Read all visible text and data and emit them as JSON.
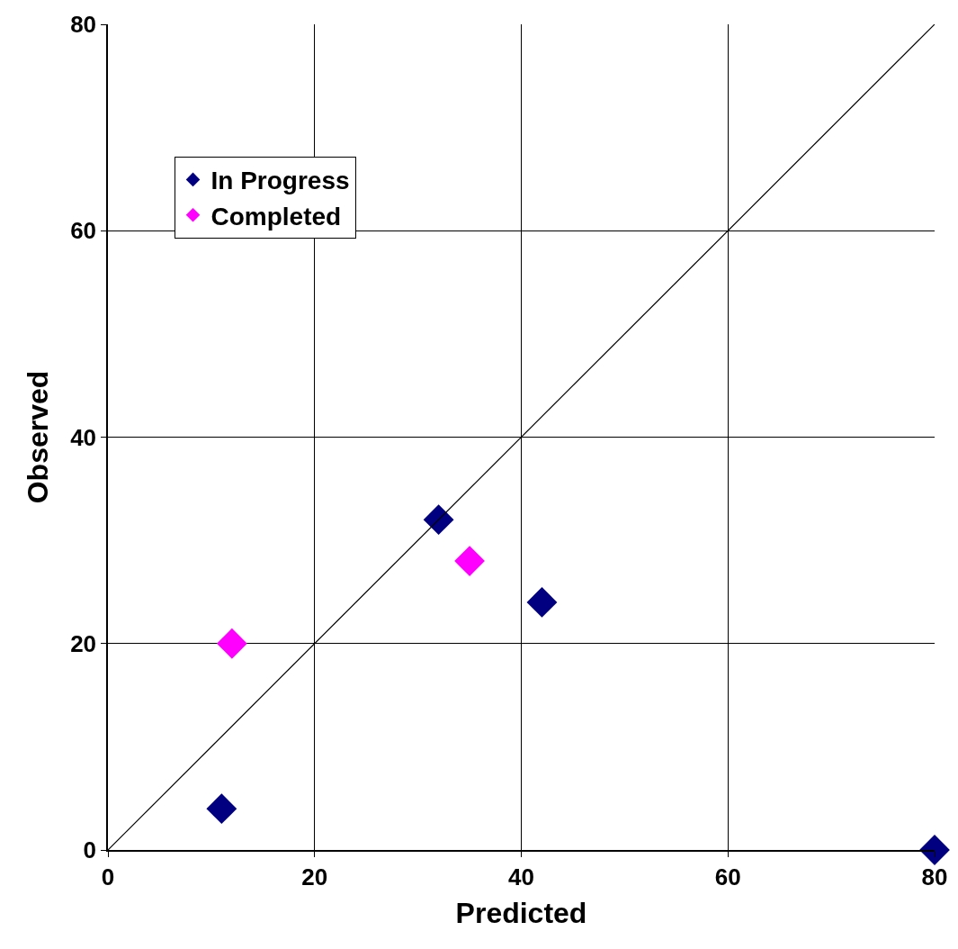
{
  "chart_data": {
    "type": "scatter",
    "xlabel": "Predicted",
    "ylabel": "Observed",
    "xlim": [
      0,
      80
    ],
    "ylim": [
      0,
      80
    ],
    "xticks": [
      0,
      20,
      40,
      60,
      80
    ],
    "yticks": [
      0,
      20,
      40,
      60,
      80
    ],
    "grid": true,
    "legend": "top left",
    "marker": "diamond",
    "series": [
      {
        "name": "In Progress",
        "color": "#000080",
        "x": [
          11,
          32,
          42,
          80
        ],
        "values": [
          4,
          32,
          24,
          0
        ]
      },
      {
        "name": "Completed",
        "color": "#ff00ff",
        "x": [
          12,
          35
        ],
        "values": [
          20,
          28
        ]
      },
      {
        "type": "line",
        "color": "#000000",
        "marker": "none",
        "line_style": "solid",
        "x": [
          0,
          80
        ],
        "values": [
          0,
          80
        ]
      }
    ]
  }
}
